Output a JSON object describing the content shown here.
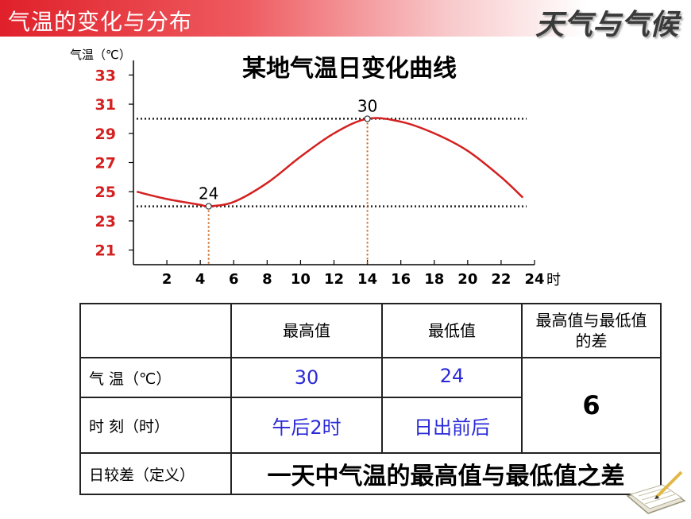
{
  "banner": {
    "title": "气温的变化与分布",
    "brand": "天气与气候"
  },
  "chart_data": {
    "type": "line",
    "title": "某地气温日变化曲线",
    "ylabel": "气温（℃）",
    "xlabel": "时",
    "xlim": [
      0,
      24
    ],
    "ylim": [
      20,
      34
    ],
    "x_ticks": [
      2,
      4,
      6,
      8,
      10,
      12,
      14,
      16,
      18,
      20,
      22,
      24
    ],
    "y_ticks": [
      21,
      23,
      25,
      27,
      29,
      31,
      33
    ],
    "series": [
      {
        "x": [
          0.2,
          2,
          4,
          4.5,
          6,
          8,
          10,
          12,
          14,
          16,
          18,
          20,
          22,
          23.3
        ],
        "y": [
          25.0,
          24.5,
          24.1,
          24.0,
          24.3,
          25.6,
          27.4,
          29.0,
          30.0,
          29.8,
          29.0,
          27.8,
          26.0,
          24.6
        ]
      }
    ],
    "annotations": [
      {
        "x": 4.5,
        "y": 24,
        "label": "24"
      },
      {
        "x": 14,
        "y": 30,
        "label": "30"
      }
    ],
    "colors": {
      "curve": "#d42020",
      "guide_v": "#c8641e",
      "guide_h": "#222222",
      "y_tick": "#d42020"
    }
  },
  "table": {
    "headers": [
      "",
      "最高值",
      "最低值",
      "最高值与最低值的差"
    ],
    "rows": [
      {
        "label": "气  温（℃）",
        "max": "30",
        "min": "24"
      },
      {
        "label": "时  刻（时）",
        "max": "午后2时",
        "min": "日出前后"
      }
    ],
    "diff": "6",
    "definition_label": "日较差（定义）",
    "definition": "一天中气温的最高值与最低值之差"
  }
}
